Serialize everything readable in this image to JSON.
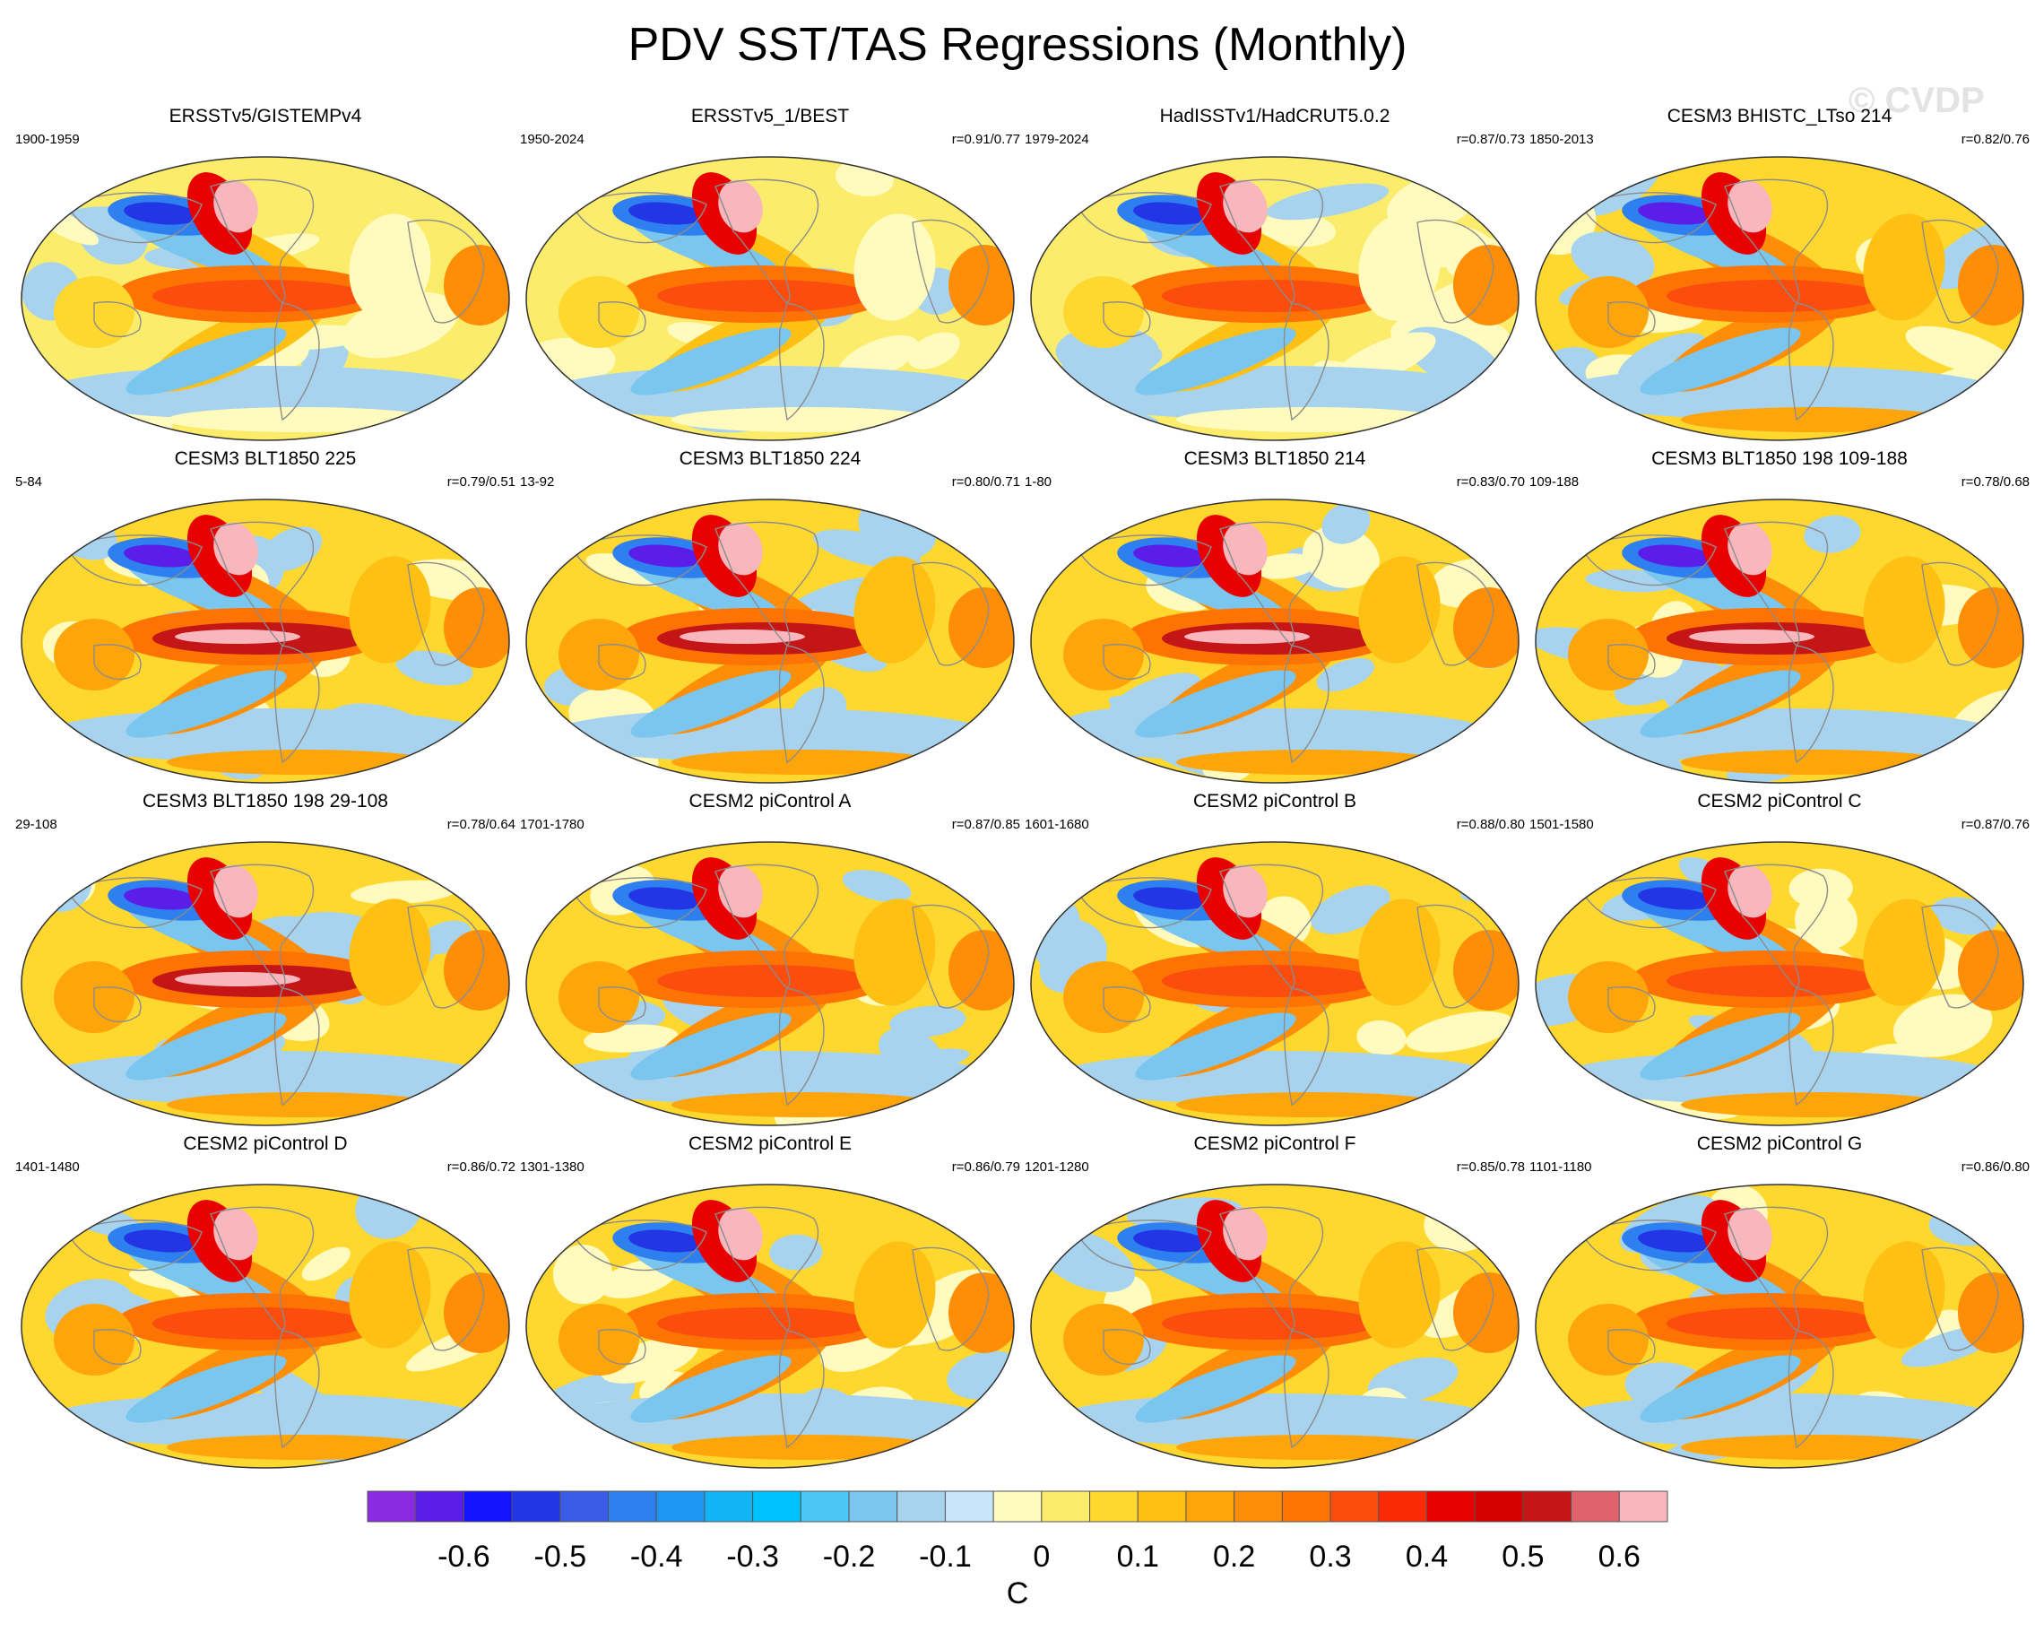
{
  "title": "PDV SST/TAS Regressions (Monthly)",
  "watermark": "© CVDP",
  "panels": [
    {
      "title": "ERSSTv5/GISTEMPv4",
      "period": "1900-1959",
      "corr": "",
      "variant": 0
    },
    {
      "title": "ERSSTv5_1/BEST",
      "period": "1950-2024",
      "corr": "r=0.91/0.77",
      "variant": 1
    },
    {
      "title": "HadISSTv1/HadCRUT5.0.2",
      "period": "1979-2024",
      "corr": "r=0.87/0.73",
      "variant": 2
    },
    {
      "title": "CESM3 BHISTC_LTso 214",
      "period": "1850-2013",
      "corr": "r=0.82/0.76",
      "variant": 3
    },
    {
      "title": "CESM3 BLT1850 225",
      "period": "5-84",
      "corr": "r=0.79/0.51",
      "variant": 4
    },
    {
      "title": "CESM3 BLT1850 224",
      "period": "13-92",
      "corr": "r=0.80/0.71",
      "variant": 5
    },
    {
      "title": "CESM3 BLT1850 214",
      "period": "1-80",
      "corr": "r=0.83/0.70",
      "variant": 6
    },
    {
      "title": "CESM3 BLT1850 198 109-188",
      "period": "109-188",
      "corr": "r=0.78/0.68",
      "variant": 7
    },
    {
      "title": "CESM3 BLT1850 198 29-108",
      "period": "29-108",
      "corr": "r=0.78/0.64",
      "variant": 8
    },
    {
      "title": "CESM2 piControl A",
      "period": "1701-1780",
      "corr": "r=0.87/0.85",
      "variant": 9
    },
    {
      "title": "CESM2 piControl B",
      "period": "1601-1680",
      "corr": "r=0.88/0.80",
      "variant": 10
    },
    {
      "title": "CESM2 piControl C",
      "period": "1501-1580",
      "corr": "r=0.87/0.76",
      "variant": 11
    },
    {
      "title": "CESM2 piControl D",
      "period": "1401-1480",
      "corr": "r=0.86/0.72",
      "variant": 12
    },
    {
      "title": "CESM2 piControl E",
      "period": "1301-1380",
      "corr": "r=0.86/0.79",
      "variant": 13
    },
    {
      "title": "CESM2 piControl F",
      "period": "1201-1280",
      "corr": "r=0.85/0.78",
      "variant": 14
    },
    {
      "title": "CESM2 piControl G",
      "period": "1101-1180",
      "corr": "r=0.86/0.80",
      "variant": 15
    }
  ],
  "colorbar": {
    "colors": [
      "#8a2be2",
      "#5a1ee8",
      "#1414ff",
      "#2236e6",
      "#3a5ce6",
      "#2e7ff0",
      "#1e97f2",
      "#13b4f5",
      "#00c2ff",
      "#4cc6f5",
      "#7ac6ef",
      "#a7d3ef",
      "#c8e6f7",
      "#fffbbe",
      "#fcec6b",
      "#fed72f",
      "#fec013",
      "#fea50b",
      "#fe8e07",
      "#fd7404",
      "#fb4d0d",
      "#fc2a04",
      "#e80000",
      "#d40000",
      "#c41616",
      "#e0636b",
      "#f8b6bd"
    ],
    "tick_labels": [
      "-0.6",
      "-0.5",
      "-0.4",
      "-0.3",
      "-0.2",
      "-0.1",
      "0",
      "0.1",
      "0.2",
      "0.3",
      "0.4",
      "0.5",
      "0.6"
    ],
    "units": "C"
  }
}
